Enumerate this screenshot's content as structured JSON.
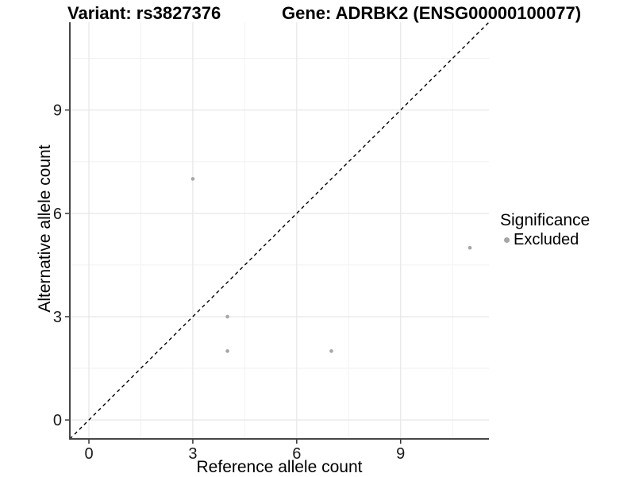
{
  "chart_data": {
    "type": "scatter",
    "title_left": "Variant: rs3827376",
    "title_right": "Gene: ADRBK2 (ENSG00000100077)",
    "xlabel": "Reference allele count",
    "ylabel": "Alternative allele count",
    "xlim": [
      -0.55,
      11.55
    ],
    "ylim": [
      -0.55,
      11.55
    ],
    "xticks": [
      0,
      3,
      6,
      9
    ],
    "yticks": [
      0,
      3,
      6,
      9
    ],
    "xtick_labels": [
      "0",
      "3",
      "6",
      "9"
    ],
    "ytick_labels": [
      "0",
      "3",
      "6",
      "9"
    ],
    "xticks_minor": [
      1.5,
      4.5,
      7.5,
      10.5
    ],
    "yticks_minor": [
      1.5,
      4.5,
      7.5,
      10.5
    ],
    "grid": true,
    "points": [
      {
        "x": 3,
        "y": 7,
        "significance": "Excluded"
      },
      {
        "x": 4,
        "y": 3,
        "significance": "Excluded"
      },
      {
        "x": 4,
        "y": 2,
        "significance": "Excluded"
      },
      {
        "x": 7,
        "y": 2,
        "significance": "Excluded"
      },
      {
        "x": 11,
        "y": 5,
        "significance": "Excluded"
      }
    ],
    "identity_line": {
      "type": "dashed",
      "slope": 1,
      "intercept": 0
    },
    "legend": {
      "position": "right",
      "title": "Significance",
      "items": [
        {
          "label": "Excluded",
          "color": "#a6a6a6"
        }
      ]
    },
    "colors": {
      "point": "#a6a6a6",
      "identity_line": "#000000",
      "grid_major": "#e6e6e6",
      "grid_minor": "#f2f2f2",
      "axis_line": "#474747",
      "tick_mark": "#333333",
      "tick_text": "#1a1a1a"
    }
  }
}
